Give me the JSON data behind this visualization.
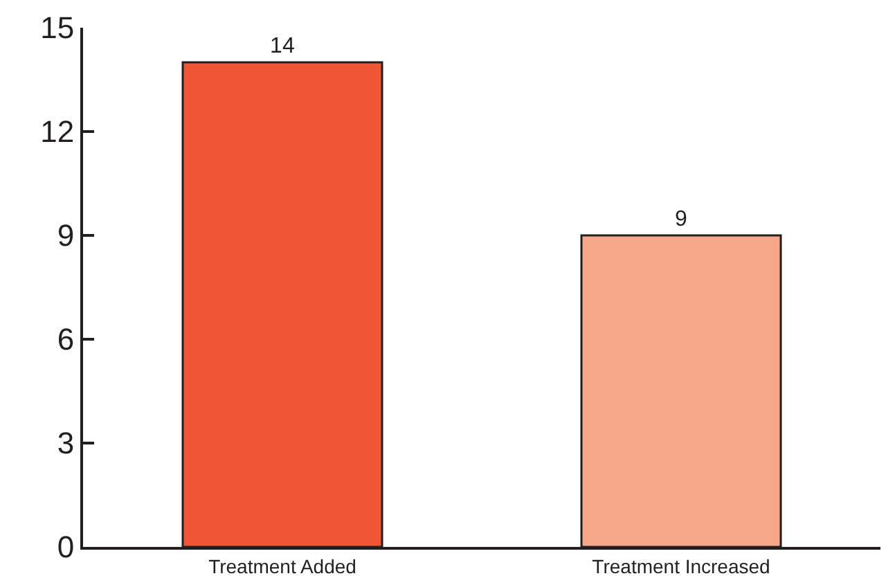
{
  "chart_data": {
    "type": "bar",
    "categories": [
      "Treatment Added",
      "Treatment Increased"
    ],
    "values": [
      14,
      9
    ],
    "colors": [
      "#f05535",
      "#f7a88a"
    ],
    "ylim": [
      0,
      15
    ],
    "yticks": [
      0,
      3,
      6,
      9,
      12,
      15
    ],
    "grid": false,
    "data_labels": true
  }
}
